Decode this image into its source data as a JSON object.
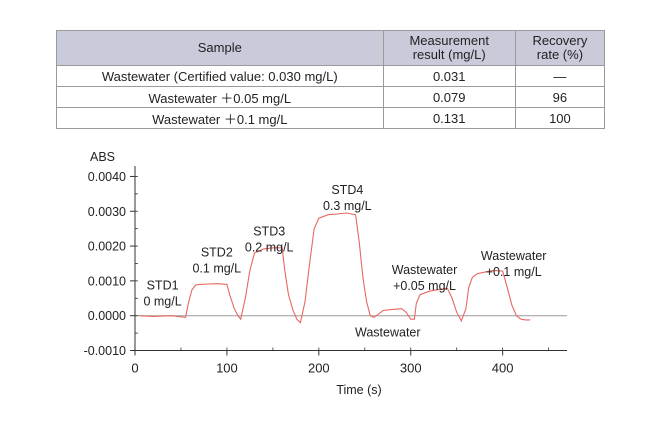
{
  "table": {
    "headers": [
      "Sample",
      "Measurement\nresult (mg/L)",
      "Recovery\nrate (%)"
    ],
    "rows": [
      [
        "Wastewater (Certified value: 0.030 mg/L)",
        "0.031",
        "—"
      ],
      [
        "Wastewater ＋0.05 mg/L",
        "0.079",
        "96"
      ],
      [
        "Wastewater ＋0.1 mg/L",
        "0.131",
        "100"
      ]
    ]
  },
  "chart_data": {
    "type": "line",
    "xlabel": "Time (s)",
    "ylabel": "ABS",
    "xlim": [
      0,
      470
    ],
    "ylim": [
      -0.001,
      0.0043
    ],
    "x_ticks": [
      0,
      100,
      200,
      300,
      400
    ],
    "y_ticks": [
      -0.001,
      0.0,
      0.001,
      0.002,
      0.003,
      0.004
    ],
    "y_tick_labels": [
      "-0.0010",
      "0.0000",
      "0.0010",
      "0.0020",
      "0.0030",
      "0.0040"
    ],
    "baseline": 0.0,
    "grid": false,
    "series": [
      {
        "color": "#e8675f",
        "x": [
          5,
          20,
          40,
          55,
          58,
          62,
          66,
          70,
          80,
          90,
          100,
          103,
          108,
          112,
          115,
          120,
          125,
          130,
          140,
          150,
          160,
          163,
          167,
          172,
          176,
          180,
          185,
          190,
          195,
          200,
          210,
          220,
          230,
          240,
          244,
          248,
          252,
          256,
          260,
          270,
          280,
          290,
          295,
          300,
          304,
          306,
          310,
          320,
          330,
          340,
          345,
          350,
          355,
          360,
          363,
          367,
          372,
          380,
          390,
          400,
          405,
          410,
          415,
          420,
          425,
          430
        ],
        "y": [
          0.0,
          -2e-05,
          0.0,
          -5e-05,
          0.00035,
          0.00075,
          0.00088,
          0.0009,
          0.00091,
          0.00092,
          0.0009,
          0.0006,
          0.0002,
          0.0,
          -0.0001,
          0.0005,
          0.0013,
          0.0018,
          0.00192,
          0.00195,
          0.00195,
          0.0013,
          0.0006,
          0.00015,
          -0.0001,
          -0.0002,
          0.0004,
          0.0015,
          0.0025,
          0.0028,
          0.0029,
          0.00292,
          0.00295,
          0.0029,
          0.0021,
          0.0011,
          0.0004,
          0.0,
          -5e-05,
          0.00015,
          0.00018,
          0.0002,
          0.0001,
          -0.0001,
          -0.0001,
          0.00035,
          0.0006,
          0.0007,
          0.00075,
          0.00078,
          0.0005,
          0.0001,
          -0.00015,
          0.0002,
          0.0008,
          0.0011,
          0.0012,
          0.00125,
          0.0013,
          0.00128,
          0.0008,
          0.0003,
          0.0,
          -0.0001,
          -0.00012,
          -0.00012
        ]
      }
    ],
    "annotations": [
      {
        "lines": [
          "STD1",
          "0 mg/L"
        ],
        "x": 30,
        "y": 0.00075
      },
      {
        "lines": [
          "STD2",
          "0.1 mg/L"
        ],
        "x": 89,
        "y": 0.0017
      },
      {
        "lines": [
          "STD3",
          "0.2 mg/L"
        ],
        "x": 146,
        "y": 0.0023
      },
      {
        "lines": [
          "STD4",
          "0.3 mg/L"
        ],
        "x": 231,
        "y": 0.0035
      },
      {
        "lines": [
          "Wastewater",
          "+0.05 mg/L"
        ],
        "x": 315,
        "y": 0.0012
      },
      {
        "lines": [
          "Wastewater",
          "+0.1 mg/L"
        ],
        "x": 412,
        "y": 0.0016
      },
      {
        "lines": [
          "Wastewater"
        ],
        "x": 275,
        "y": -0.0006
      }
    ]
  }
}
